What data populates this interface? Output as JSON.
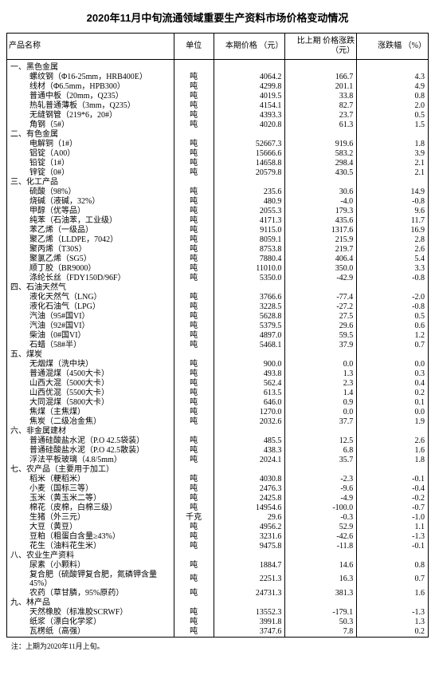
{
  "title": "2020年11月中旬流通领域重要生产资料市场价格变动情况",
  "columns": [
    "产品名称",
    "单位",
    "本期价格\n（元）",
    "比上期\n价格涨跌\n（元）",
    "涨跌幅\n（%）"
  ],
  "sections": [
    {
      "label": "一、黑色金属",
      "rows": [
        {
          "name": "螺纹钢（Φ16-25mm，HRB400E）",
          "unit": "吨",
          "price": "4064.2",
          "delta": "166.7",
          "pct": "4.3"
        },
        {
          "name": "线材（Φ6.5mm，HPB300）",
          "unit": "吨",
          "price": "4299.8",
          "delta": "201.1",
          "pct": "4.9"
        },
        {
          "name": "普通中板（20mm，Q235）",
          "unit": "吨",
          "price": "4019.5",
          "delta": "33.8",
          "pct": "0.8"
        },
        {
          "name": "热轧普通薄板（3mm，Q235）",
          "unit": "吨",
          "price": "4154.1",
          "delta": "82.7",
          "pct": "2.0"
        },
        {
          "name": "无缝钢管（219*6，20#）",
          "unit": "吨",
          "price": "4393.3",
          "delta": "23.7",
          "pct": "0.5"
        },
        {
          "name": "角钢（5#）",
          "unit": "吨",
          "price": "4020.8",
          "delta": "61.3",
          "pct": "1.5"
        }
      ]
    },
    {
      "label": "二、有色金属",
      "rows": [
        {
          "name": "电解铜（1#）",
          "unit": "吨",
          "price": "52667.3",
          "delta": "919.6",
          "pct": "1.8"
        },
        {
          "name": "铝锭（A00）",
          "unit": "吨",
          "price": "15666.6",
          "delta": "583.2",
          "pct": "3.9"
        },
        {
          "name": "铅锭（1#）",
          "unit": "吨",
          "price": "14658.8",
          "delta": "298.4",
          "pct": "2.1"
        },
        {
          "name": "锌锭（0#）",
          "unit": "吨",
          "price": "20579.8",
          "delta": "430.5",
          "pct": "2.1"
        }
      ]
    },
    {
      "label": "三、化工产品",
      "rows": [
        {
          "name": "硫酸（98%）",
          "unit": "吨",
          "price": "235.6",
          "delta": "30.6",
          "pct": "14.9"
        },
        {
          "name": "烧碱（液碱，32%）",
          "unit": "吨",
          "price": "480.9",
          "delta": "-4.0",
          "pct": "-0.8"
        },
        {
          "name": "甲醇（优等品）",
          "unit": "吨",
          "price": "2055.3",
          "delta": "179.3",
          "pct": "9.6"
        },
        {
          "name": "纯苯（石油苯，工业级）",
          "unit": "吨",
          "price": "4171.3",
          "delta": "435.6",
          "pct": "11.7"
        },
        {
          "name": "苯乙烯（一级品）",
          "unit": "吨",
          "price": "9115.0",
          "delta": "1317.6",
          "pct": "16.9"
        },
        {
          "name": "聚乙烯（LLDPE，7042）",
          "unit": "吨",
          "price": "8059.1",
          "delta": "215.9",
          "pct": "2.8"
        },
        {
          "name": "聚丙烯（T30S）",
          "unit": "吨",
          "price": "8753.8",
          "delta": "219.7",
          "pct": "2.6"
        },
        {
          "name": "聚氯乙烯（SG5）",
          "unit": "吨",
          "price": "7880.4",
          "delta": "406.4",
          "pct": "5.4"
        },
        {
          "name": "顺丁胶（BR9000）",
          "unit": "吨",
          "price": "11010.0",
          "delta": "350.0",
          "pct": "3.3"
        },
        {
          "name": "涤纶长丝（FDY150D/96F）",
          "unit": "吨",
          "price": "5350.0",
          "delta": "-42.9",
          "pct": "-0.8"
        }
      ]
    },
    {
      "label": "四、石油天然气",
      "rows": [
        {
          "name": "液化天然气（LNG）",
          "unit": "吨",
          "price": "3766.6",
          "delta": "-77.4",
          "pct": "-2.0"
        },
        {
          "name": "液化石油气（LPG）",
          "unit": "吨",
          "price": "3228.5",
          "delta": "-27.2",
          "pct": "-0.8"
        },
        {
          "name": "汽油（95#国VI）",
          "unit": "吨",
          "price": "5628.8",
          "delta": "27.5",
          "pct": "0.5"
        },
        {
          "name": "汽油（92#国VI）",
          "unit": "吨",
          "price": "5379.5",
          "delta": "29.6",
          "pct": "0.6"
        },
        {
          "name": "柴油（0#国VI）",
          "unit": "吨",
          "price": "4897.0",
          "delta": "59.5",
          "pct": "1.2"
        },
        {
          "name": "石蜡（58#半）",
          "unit": "吨",
          "price": "5468.1",
          "delta": "37.9",
          "pct": "0.7"
        }
      ]
    },
    {
      "label": "五、煤炭",
      "rows": [
        {
          "name": "无烟煤（洗中块）",
          "unit": "吨",
          "price": "900.0",
          "delta": "0.0",
          "pct": "0.0"
        },
        {
          "name": "普通混煤（4500大卡）",
          "unit": "吨",
          "price": "493.8",
          "delta": "1.3",
          "pct": "0.3"
        },
        {
          "name": "山西大混（5000大卡）",
          "unit": "吨",
          "price": "562.4",
          "delta": "2.3",
          "pct": "0.4"
        },
        {
          "name": "山西优混（5500大卡）",
          "unit": "吨",
          "price": "613.5",
          "delta": "1.4",
          "pct": "0.2"
        },
        {
          "name": "大同混煤（5800大卡）",
          "unit": "吨",
          "price": "646.0",
          "delta": "0.9",
          "pct": "0.1"
        },
        {
          "name": "焦煤（主焦煤）",
          "unit": "吨",
          "price": "1270.0",
          "delta": "0.0",
          "pct": "0.0"
        },
        {
          "name": "焦炭（二级冶金焦）",
          "unit": "吨",
          "price": "2032.6",
          "delta": "37.7",
          "pct": "1.9"
        }
      ]
    },
    {
      "label": "六、非金属建材",
      "rows": [
        {
          "name": "普通硅酸盐水泥（P.O 42.5袋装）",
          "unit": "吨",
          "price": "485.5",
          "delta": "12.5",
          "pct": "2.6"
        },
        {
          "name": "普通硅酸盐水泥（P.O 42.5散装）",
          "unit": "吨",
          "price": "438.3",
          "delta": "6.8",
          "pct": "1.6"
        },
        {
          "name": "浮法平板玻璃（4.8/5mm）",
          "unit": "吨",
          "price": "2024.1",
          "delta": "35.7",
          "pct": "1.8"
        }
      ]
    },
    {
      "label": "七、农产品（主要用于加工）",
      "rows": [
        {
          "name": "稻米（粳稻米）",
          "unit": "吨",
          "price": "4030.8",
          "delta": "-2.3",
          "pct": "-0.1"
        },
        {
          "name": "小麦（国标三等）",
          "unit": "吨",
          "price": "2476.3",
          "delta": "-9.6",
          "pct": "-0.4"
        },
        {
          "name": "玉米（黄玉米二等）",
          "unit": "吨",
          "price": "2425.8",
          "delta": "-4.9",
          "pct": "-0.2"
        },
        {
          "name": "棉花（皮棉，白棉三级）",
          "unit": "吨",
          "price": "14954.6",
          "delta": "-100.0",
          "pct": "-0.7"
        },
        {
          "name": "生猪（外三元）",
          "unit": "千克",
          "price": "29.6",
          "delta": "-0.3",
          "pct": "-1.0"
        },
        {
          "name": "大豆（黄豆）",
          "unit": "吨",
          "price": "4956.2",
          "delta": "52.9",
          "pct": "1.1"
        },
        {
          "name": "豆粕（粗蛋白含量≥43%）",
          "unit": "吨",
          "price": "3231.6",
          "delta": "-42.6",
          "pct": "-1.3"
        },
        {
          "name": "花生（油料花生米）",
          "unit": "吨",
          "price": "9475.8",
          "delta": "-11.8",
          "pct": "-0.1"
        }
      ]
    },
    {
      "label": "八、农业生产资料",
      "rows": [
        {
          "name": "尿素（小颗料）",
          "unit": "吨",
          "price": "1884.7",
          "delta": "14.6",
          "pct": "0.8"
        },
        {
          "name": "复合肥（硫酸钾复合肥，氮磷钾含量45%）",
          "unit": "吨",
          "price": "2251.3",
          "delta": "16.3",
          "pct": "0.7"
        },
        {
          "name": "农药（草甘膦，95%原药）",
          "unit": "吨",
          "price": "24731.3",
          "delta": "381.3",
          "pct": "1.6"
        }
      ]
    },
    {
      "label": "九、林产品",
      "rows": [
        {
          "name": "天然橡胶（标准胶SCRWF）",
          "unit": "吨",
          "price": "13552.3",
          "delta": "-179.1",
          "pct": "-1.3"
        },
        {
          "name": "纸浆（漂白化学浆）",
          "unit": "吨",
          "price": "3991.8",
          "delta": "50.3",
          "pct": "1.3"
        },
        {
          "name": "瓦楞纸（高强）",
          "unit": "吨",
          "price": "3747.6",
          "delta": "7.8",
          "pct": "0.2"
        }
      ]
    }
  ],
  "footnote": "注：上期为2020年11月上旬。"
}
